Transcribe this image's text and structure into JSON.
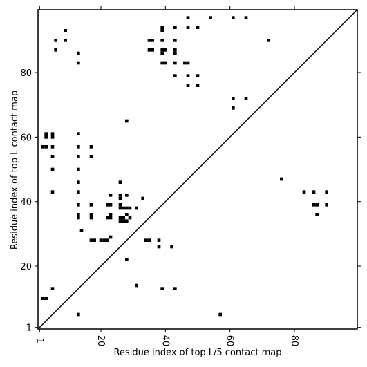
{
  "chart_data": {
    "type": "scatter",
    "title": "",
    "xlabel": "Residue index of top L/5 contact map",
    "ylabel": "Residue index of top L contact map",
    "xlim": [
      0.5,
      99.5
    ],
    "ylim": [
      0.5,
      99.5
    ],
    "x_ticks": [
      1,
      20,
      40,
      60,
      80
    ],
    "y_ticks": [
      1,
      20,
      40,
      60,
      80
    ],
    "x_tick_labels": [
      "1",
      "20",
      "40",
      "60",
      "80"
    ],
    "y_tick_labels": [
      "1",
      "20",
      "40",
      "60",
      "80"
    ],
    "diagonal": true,
    "marker": "square",
    "color": "#000000",
    "grid": false,
    "points": [
      [
        9,
        93
      ],
      [
        6,
        90
      ],
      [
        9,
        90
      ],
      [
        6,
        87
      ],
      [
        13,
        86
      ],
      [
        13,
        83
      ],
      [
        35,
        90
      ],
      [
        36,
        90
      ],
      [
        35,
        87
      ],
      [
        36,
        87
      ],
      [
        39,
        94
      ],
      [
        39,
        93
      ],
      [
        43,
        94
      ],
      [
        39,
        90
      ],
      [
        43,
        90
      ],
      [
        39,
        87
      ],
      [
        40,
        87
      ],
      [
        39,
        86
      ],
      [
        43,
        87
      ],
      [
        43,
        86
      ],
      [
        39,
        83
      ],
      [
        40,
        83
      ],
      [
        43,
        83
      ],
      [
        46,
        83
      ],
      [
        47,
        83
      ],
      [
        47,
        97
      ],
      [
        54,
        97
      ],
      [
        61,
        97
      ],
      [
        65,
        97
      ],
      [
        47,
        94
      ],
      [
        50,
        94
      ],
      [
        43,
        79
      ],
      [
        47,
        79
      ],
      [
        50,
        79
      ],
      [
        47,
        76
      ],
      [
        50,
        76
      ],
      [
        72,
        90
      ],
      [
        61,
        72
      ],
      [
        65,
        72
      ],
      [
        61,
        69
      ],
      [
        3,
        61
      ],
      [
        5,
        61
      ],
      [
        3,
        60
      ],
      [
        5,
        60
      ],
      [
        13,
        61
      ],
      [
        2,
        57
      ],
      [
        3,
        57
      ],
      [
        5,
        57
      ],
      [
        13,
        57
      ],
      [
        17,
        57
      ],
      [
        5,
        54
      ],
      [
        13,
        54
      ],
      [
        17,
        54
      ],
      [
        5,
        50
      ],
      [
        13,
        50
      ],
      [
        13,
        46
      ],
      [
        5,
        43
      ],
      [
        13,
        43
      ],
      [
        28,
        65
      ],
      [
        76,
        47
      ],
      [
        83,
        43
      ],
      [
        86,
        43
      ],
      [
        90,
        43
      ],
      [
        86,
        39
      ],
      [
        87,
        39
      ],
      [
        90,
        39
      ],
      [
        87,
        36
      ],
      [
        26,
        46
      ],
      [
        26,
        42
      ],
      [
        28,
        42
      ],
      [
        23,
        42
      ],
      [
        26,
        41
      ],
      [
        33,
        41
      ],
      [
        13,
        39
      ],
      [
        17,
        39
      ],
      [
        22,
        39
      ],
      [
        23,
        39
      ],
      [
        26,
        39
      ],
      [
        26,
        38
      ],
      [
        27,
        38
      ],
      [
        28,
        38
      ],
      [
        29,
        38
      ],
      [
        31,
        38
      ],
      [
        13,
        36
      ],
      [
        17,
        36
      ],
      [
        23,
        36
      ],
      [
        28,
        36
      ],
      [
        13,
        35
      ],
      [
        17,
        35
      ],
      [
        22,
        35
      ],
      [
        23,
        35
      ],
      [
        26,
        35
      ],
      [
        27,
        35
      ],
      [
        29,
        35
      ],
      [
        26,
        34
      ],
      [
        27,
        34
      ],
      [
        28,
        34
      ],
      [
        14,
        31
      ],
      [
        23,
        29
      ],
      [
        17,
        28
      ],
      [
        18,
        28
      ],
      [
        20,
        28
      ],
      [
        21,
        28
      ],
      [
        22,
        28
      ],
      [
        34,
        28
      ],
      [
        35,
        28
      ],
      [
        38,
        28
      ],
      [
        38,
        26
      ],
      [
        42,
        26
      ],
      [
        28,
        22
      ],
      [
        31,
        14
      ],
      [
        39,
        13
      ],
      [
        43,
        13
      ],
      [
        5,
        13
      ],
      [
        2,
        10
      ],
      [
        3,
        10
      ],
      [
        13,
        5
      ],
      [
        57,
        5
      ]
    ]
  }
}
